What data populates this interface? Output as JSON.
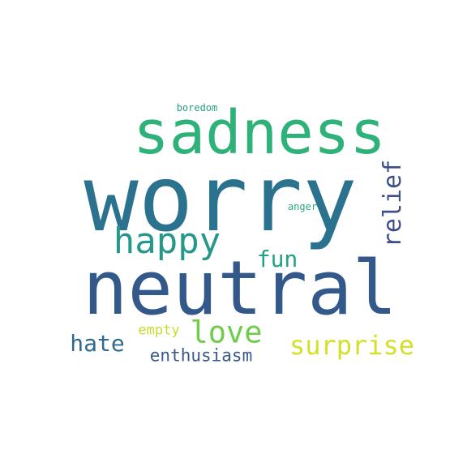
{
  "word_cloud": {
    "words": {
      "worry": {
        "text": "worry",
        "color": "#2b728e"
      },
      "neutral": {
        "text": "neutral",
        "color": "#33598a"
      },
      "sadness": {
        "text": "sadness",
        "color": "#2fb17a"
      },
      "happy": {
        "text": "happy",
        "color": "#26988a"
      },
      "love": {
        "text": "love",
        "color": "#6fcc4c"
      },
      "relief": {
        "text": "relief",
        "color": "#3d4f89"
      },
      "surprise": {
        "text": "surprise",
        "color": "#d4df28"
      },
      "hate": {
        "text": "hate",
        "color": "#2f6a8d"
      },
      "fun": {
        "text": "fun",
        "color": "#23a185"
      },
      "enthusiasm": {
        "text": "enthusiasm",
        "color": "#3a5a8c"
      },
      "empty": {
        "text": "empty",
        "color": "#cadb2d"
      },
      "boredom": {
        "text": "boredom",
        "color": "#26a083"
      },
      "anger": {
        "text": "anger",
        "color": "#2aa884"
      }
    }
  }
}
